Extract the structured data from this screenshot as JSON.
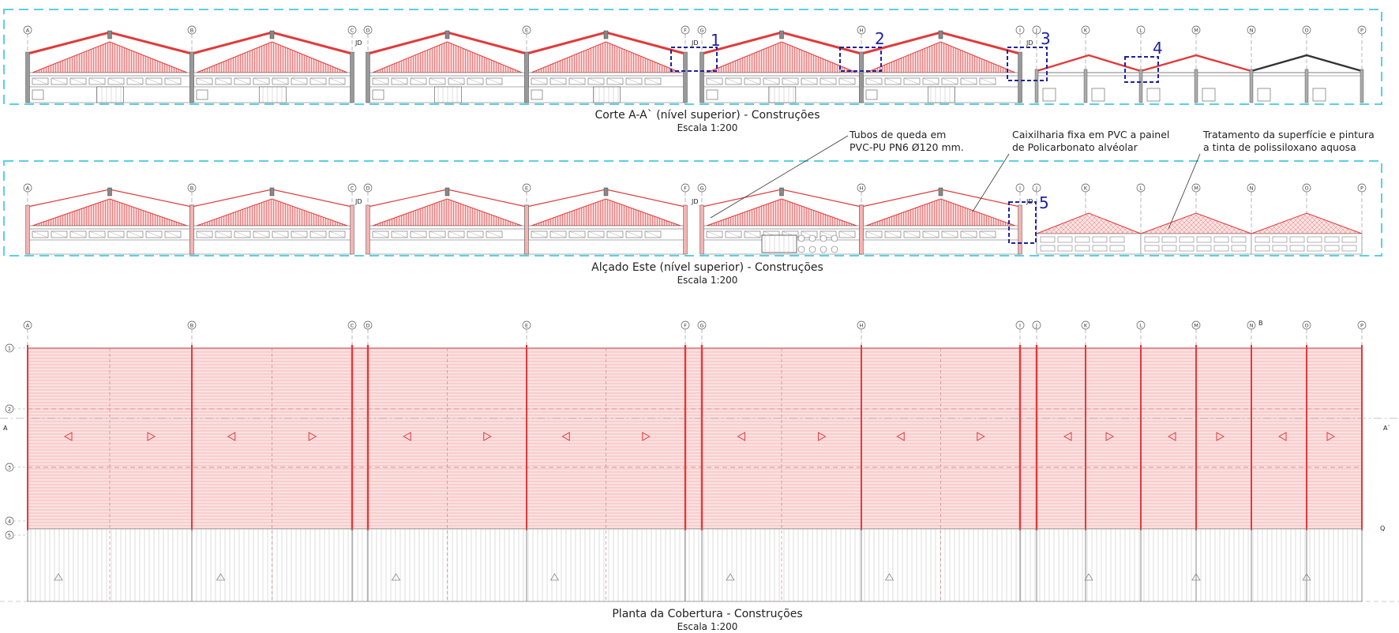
{
  "drawing": {
    "section": {
      "title": "Corte A-A` (nível superior) - Construções",
      "scale": "Escala 1:200",
      "callouts": [
        "1",
        "2",
        "3",
        "4"
      ],
      "jd_labels": [
        "JD",
        "JD",
        "JD"
      ]
    },
    "elevation": {
      "title": "Alçado Este (nível superior) - Construções",
      "scale": "Escala 1:200",
      "callouts": [
        "5"
      ],
      "jd_labels": [
        "JD",
        "JD",
        "JD"
      ],
      "notes": [
        {
          "line1": "Tubos de queda em",
          "line2": "PVC-PU PN6 Ø120 mm."
        },
        {
          "line1": "Caixilharia fixa em PVC a painel",
          "line2": "de Policarbonato alvéolar"
        },
        {
          "line1": "Tratamento da superfície e pintura",
          "line2": "a tinta de polissiloxano aquosa"
        }
      ]
    },
    "roof_plan": {
      "title": "Planta da Cobertura - Construções",
      "scale": "Escala 1:200",
      "row_axes": [
        "1",
        "2",
        "3",
        "4",
        "5"
      ],
      "section_mark": "A",
      "section_mark_right": "A`",
      "mark_b": "B",
      "mark_q": "Q"
    },
    "grid_axes": [
      "A",
      "B",
      "C",
      "D",
      "E",
      "F",
      "G",
      "H",
      "I",
      "J",
      "K",
      "L",
      "M",
      "N",
      "O",
      "P"
    ],
    "colors": {
      "roof_red": "#e23a3a",
      "roof_fill": "#f7c6c6",
      "frame_blue": "#5ccfe6",
      "callout_blue": "#1e22a0",
      "line_dark": "#444444"
    }
  }
}
